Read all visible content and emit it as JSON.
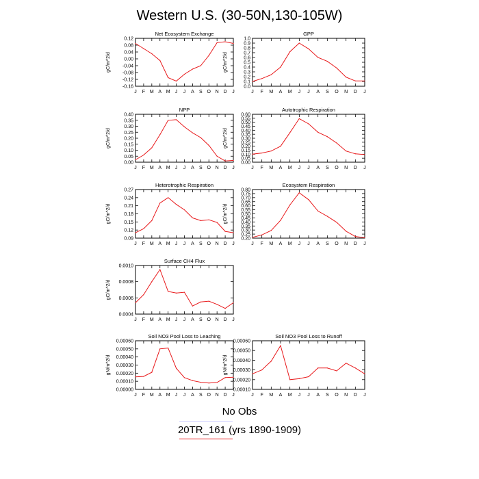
{
  "title": "Western U.S. (30-50N,130-105W)",
  "months": [
    "J",
    "F",
    "M",
    "A",
    "M",
    "J",
    "J",
    "A",
    "S",
    "O",
    "N",
    "D",
    "J"
  ],
  "line_color": "#e8191b",
  "legend": [
    {
      "label": "No Obs",
      "color": "#ccccff"
    },
    {
      "label": "20TR_161 (yrs 1890-1909)",
      "color": "#e8191b"
    }
  ],
  "chart_data": [
    {
      "type": "line",
      "title": "Net Ecosystem Exchange",
      "ylabel": "gC/m^2/d",
      "yticks": [
        "0.12",
        "0.08",
        "0.04",
        "0.00",
        "-0.04",
        "-0.08",
        "-0.12",
        "-0.16"
      ],
      "ylim": [
        -0.16,
        0.12
      ],
      "values": [
        0.09,
        0.06,
        0.03,
        -0.01,
        -0.11,
        -0.13,
        -0.09,
        -0.06,
        -0.04,
        0.02,
        0.095,
        0.1,
        0.09
      ]
    },
    {
      "type": "line",
      "title": "GPP",
      "ylabel": "gC/m^2/d",
      "yticks": [
        "1.0",
        "0.9",
        "0.8",
        "0.7",
        "0.6",
        "0.5",
        "0.4",
        "0.3",
        "0.2",
        "0.1",
        "0.0"
      ],
      "ylim": [
        0,
        1.0
      ],
      "values": [
        0.1,
        0.16,
        0.24,
        0.4,
        0.72,
        0.9,
        0.78,
        0.6,
        0.52,
        0.38,
        0.19,
        0.11,
        0.11
      ]
    },
    {
      "type": "line",
      "title": "NPP",
      "ylabel": "gC/m^2/d",
      "yticks": [
        "0.40",
        "0.35",
        "0.30",
        "0.25",
        "0.20",
        "0.15",
        "0.10",
        "0.05",
        "0.00"
      ],
      "ylim": [
        0,
        0.4
      ],
      "values": [
        0.02,
        0.06,
        0.12,
        0.23,
        0.35,
        0.355,
        0.295,
        0.245,
        0.205,
        0.14,
        0.05,
        0.01,
        0.015
      ]
    },
    {
      "type": "line",
      "title": "Autotrophic Respiration",
      "ylabel": "gC/m^2/d",
      "yticks": [
        "0.60",
        "0.55",
        "0.50",
        "0.45",
        "0.40",
        "0.35",
        "0.30",
        "0.25",
        "0.20",
        "0.15",
        "0.10",
        "0.05",
        "0.00"
      ],
      "ylim": [
        0,
        0.6
      ],
      "values": [
        0.1,
        0.115,
        0.14,
        0.2,
        0.37,
        0.545,
        0.48,
        0.375,
        0.32,
        0.24,
        0.14,
        0.105,
        0.095
      ]
    },
    {
      "type": "line",
      "title": "Heterotrophic Respiration",
      "ylabel": "gC/m^2/d",
      "yticks": [
        "0.27",
        "0.24",
        "0.21",
        "0.18",
        "0.15",
        "0.12",
        "0.09"
      ],
      "ylim": [
        0.09,
        0.27
      ],
      "values": [
        0.11,
        0.125,
        0.155,
        0.22,
        0.24,
        0.215,
        0.195,
        0.165,
        0.155,
        0.158,
        0.148,
        0.115,
        0.11
      ]
    },
    {
      "type": "line",
      "title": "Ecosystem Respiration",
      "ylabel": "gC/m^2/d",
      "yticks": [
        "0.80",
        "0.75",
        "0.70",
        "0.65",
        "0.60",
        "0.55",
        "0.50",
        "0.45",
        "0.40",
        "0.35",
        "0.30",
        "0.25",
        "0.20"
      ],
      "ylim": [
        0.2,
        0.8
      ],
      "values": [
        0.21,
        0.24,
        0.295,
        0.42,
        0.61,
        0.76,
        0.675,
        0.535,
        0.47,
        0.395,
        0.285,
        0.22,
        0.205
      ]
    },
    {
      "type": "line",
      "title": "Surface CH4 Flux",
      "ylabel": "gC/m^2/d",
      "yticks": [
        "0.0010",
        "0.0008",
        "0.0006",
        "0.0004"
      ],
      "ylim": [
        0.0004,
        0.001
      ],
      "values": [
        0.00054,
        0.00064,
        0.0008,
        0.00095,
        0.00068,
        0.00066,
        0.00067,
        0.0005,
        0.00055,
        0.00056,
        0.00052,
        0.00047,
        0.00054
      ]
    },
    {
      "type": "line",
      "title": "Soil NO3 Pool Loss to Leaching",
      "ylabel": "gN/m^2/d",
      "yticks": [
        "0.00060",
        "0.00050",
        "0.00040",
        "0.00030",
        "0.00020",
        "0.00010",
        "0.00000"
      ],
      "ylim": [
        0,
        0.0006
      ],
      "values": [
        0.000155,
        0.00016,
        0.00021,
        0.0005,
        0.00051,
        0.00026,
        0.000145,
        0.000108,
        8.8e-05,
        7.8e-05,
        8.5e-05,
        0.000145,
        0.00015
      ]
    },
    {
      "type": "line",
      "title": "Soil NO3 Pool Loss to Runoff",
      "ylabel": "gN/m^2/d",
      "yticks": [
        "0.00060",
        "0.00050",
        "0.00040",
        "0.00030",
        "0.00020",
        "0.00010"
      ],
      "ylim": [
        0.0001,
        0.0006
      ],
      "values": [
        0.00026,
        0.0003,
        0.00039,
        0.00055,
        0.0002,
        0.00021,
        0.00023,
        0.00032,
        0.00032,
        0.00029,
        0.00037,
        0.00032,
        0.00026
      ]
    }
  ]
}
